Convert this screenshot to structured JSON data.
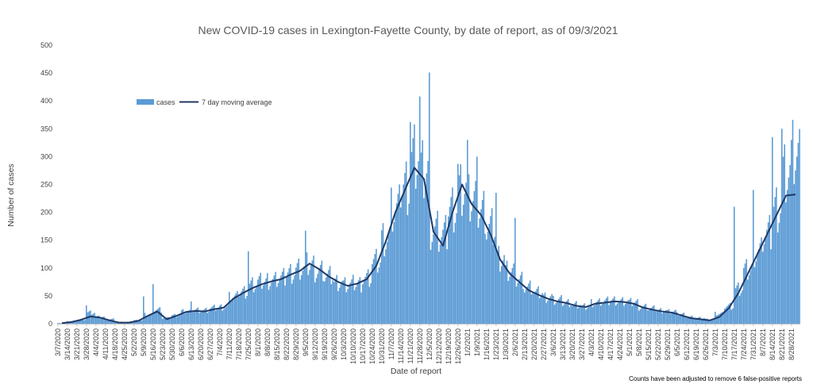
{
  "chart_data": {
    "type": "bar",
    "title": "New COVID-19 cases in Lexington-Fayette County, by date of report, as of 09/3/2021",
    "xlabel": "Date of report",
    "ylabel": "Number of cases",
    "ylim": [
      0,
      500
    ],
    "yticks": [
      "0",
      "50",
      "100",
      "150",
      "200",
      "250",
      "300",
      "350",
      "400",
      "450",
      "500"
    ],
    "x_start": "3/7/2020",
    "x_end": "9/3/2021",
    "x_tick_labels": [
      "3/7/2020",
      "3/14/2020",
      "3/21/2020",
      "3/28/2020",
      "4/4/2020",
      "4/11/2020",
      "4/18/2020",
      "4/25/2020",
      "5/2/2020",
      "5/9/2020",
      "5/16/2020",
      "5/23/2020",
      "5/30/2020",
      "6/6/2020",
      "6/13/2020",
      "6/20/2020",
      "6/27/2020",
      "7/4/2020",
      "7/11/2020",
      "7/18/2020",
      "7/25/2020",
      "8/1/2020",
      "8/8/2020",
      "8/15/2020",
      "8/22/2020",
      "8/29/2020",
      "9/5/2020",
      "9/12/2020",
      "9/19/2020",
      "9/26/2020",
      "10/3/2020",
      "10/10/2020",
      "10/17/2020",
      "10/24/2020",
      "10/31/2020",
      "11/7/2020",
      "11/14/2020",
      "11/21/2020",
      "11/28/2020",
      "12/5/2020",
      "12/12/2020",
      "12/19/2020",
      "12/26/2020",
      "1/2/2021",
      "1/9/2021",
      "1/16/2021",
      "1/23/2021",
      "1/30/2021",
      "2/6/2021",
      "2/13/2021",
      "2/20/2021",
      "2/27/2021",
      "3/6/2021",
      "3/13/2021",
      "3/20/2021",
      "3/27/2021",
      "4/3/2021",
      "4/10/2021",
      "4/17/2021",
      "4/24/2021",
      "5/1/2021",
      "5/8/2021",
      "5/15/2021",
      "5/22/2021",
      "5/29/2021",
      "6/5/2021",
      "6/12/2021",
      "6/19/2021",
      "6/26/2021",
      "7/3/2021",
      "7/10/2021",
      "7/17/2021",
      "7/24/2021",
      "7/31/2021",
      "8/7/2021",
      "8/14/2021",
      "8/21/2021",
      "8/28/2021"
    ],
    "series": [
      {
        "name": "cases",
        "kind": "bar",
        "color": "#5b9bd5",
        "weekly_values": [
          1,
          4,
          8,
          20,
          12,
          8,
          3,
          2,
          6,
          16,
          25,
          10,
          15,
          22,
          25,
          24,
          28,
          30,
          48,
          58,
          70,
          75,
          78,
          82,
          92,
          98,
          105,
          95,
          85,
          75,
          70,
          72,
          82,
          110,
          155,
          205,
          250,
          300,
          270,
          170,
          160,
          210,
          240,
          220,
          200,
          170,
          120,
          95,
          80,
          65,
          55,
          48,
          42,
          38,
          34,
          30,
          38,
          40,
          42,
          40,
          38,
          30,
          27,
          24,
          22,
          17,
          12,
          10,
          8,
          18,
          32,
          62,
          95,
          130,
          160,
          210,
          270,
          300
        ]
      },
      {
        "name": "7 day moving average",
        "kind": "line",
        "color": "#203864",
        "weekly_values": [
          1,
          3,
          7,
          13,
          11,
          6,
          2,
          2,
          5,
          14,
          22,
          8,
          14,
          21,
          23,
          22,
          26,
          29,
          45,
          55,
          64,
          71,
          76,
          80,
          88,
          95,
          108,
          98,
          85,
          75,
          68,
          72,
          80,
          104,
          148,
          200,
          240,
          280,
          260,
          165,
          140,
          200,
          250,
          215,
          195,
          160,
          115,
          90,
          75,
          60,
          52,
          45,
          40,
          37,
          32,
          30,
          36,
          38,
          40,
          39,
          36,
          29,
          25,
          22,
          20,
          15,
          10,
          8,
          6,
          12,
          28,
          55,
          90,
          125,
          160,
          195,
          230,
          232
        ]
      }
    ],
    "spikes": [
      {
        "date": "3/28/2020",
        "value": 33
      },
      {
        "date": "5/9/2020",
        "value": 49
      },
      {
        "date": "5/16/2020",
        "value": 71
      },
      {
        "date": "6/13/2020",
        "value": 40
      },
      {
        "date": "7/25/2020",
        "value": 130
      },
      {
        "date": "9/5/2020",
        "value": 167
      },
      {
        "date": "11/21/2020",
        "value": 362
      },
      {
        "date": "11/28/2020",
        "value": 408
      },
      {
        "date": "12/5/2020",
        "value": 451
      },
      {
        "date": "12/26/2020",
        "value": 287
      },
      {
        "date": "1/2/2021",
        "value": 330
      },
      {
        "date": "1/9/2021",
        "value": 300
      },
      {
        "date": "1/23/2021",
        "value": 235
      },
      {
        "date": "2/6/2021",
        "value": 190
      },
      {
        "date": "7/17/2021",
        "value": 210
      },
      {
        "date": "7/31/2021",
        "value": 240
      },
      {
        "date": "8/14/2021",
        "value": 335
      },
      {
        "date": "8/21/2021",
        "value": 350
      },
      {
        "date": "8/28/2021",
        "value": 330
      }
    ],
    "gridlines": false,
    "legend_position": "top-left",
    "note": "Counts have been adjusted to remove 6 false-positive reports"
  }
}
